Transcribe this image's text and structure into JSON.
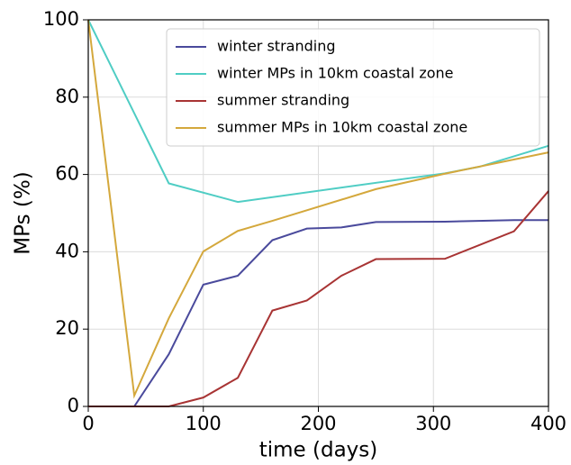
{
  "chart_data": {
    "type": "line",
    "x_label": "time (days)",
    "y_label": "MPs (%)",
    "xlim": [
      0,
      400
    ],
    "xticks": [
      0,
      100,
      200,
      300,
      400
    ],
    "ylim": [
      0,
      100
    ],
    "yticks": [
      0,
      20,
      40,
      60,
      80,
      100
    ],
    "grid": true,
    "legend": "upper right",
    "series": [
      {
        "name": "winter stranding",
        "color": "#4a4a9c",
        "x": [
          0,
          40,
          70,
          100,
          130,
          160,
          190,
          220,
          250,
          310,
          370,
          400
        ],
        "values": [
          0,
          0,
          13.5,
          31.5,
          33.8,
          43,
          46,
          46.3,
          47.7,
          47.8,
          48.2,
          48.2
        ]
      },
      {
        "name": "winter MPs in 10km coastal zone",
        "color": "#4fcdc4",
        "x": [
          0,
          70,
          130,
          310,
          340,
          400
        ],
        "values": [
          100,
          57.7,
          52.9,
          60.3,
          62,
          67.4
        ]
      },
      {
        "name": "summer stranding",
        "color": "#a83434",
        "x": [
          0,
          70,
          100,
          130,
          160,
          190,
          220,
          250,
          310,
          370,
          400
        ],
        "values": [
          0,
          0,
          2.3,
          7.4,
          24.8,
          27.4,
          33.8,
          38.1,
          38.2,
          45.3,
          55.7
        ]
      },
      {
        "name": "summer MPs in 10km coastal zone",
        "color": "#d4a83c",
        "x": [
          0,
          40,
          70,
          100,
          130,
          160,
          250,
          310,
          400
        ],
        "values": [
          100,
          2.8,
          22.8,
          40.1,
          45.4,
          48,
          56.2,
          60.2,
          65.7
        ]
      }
    ]
  }
}
